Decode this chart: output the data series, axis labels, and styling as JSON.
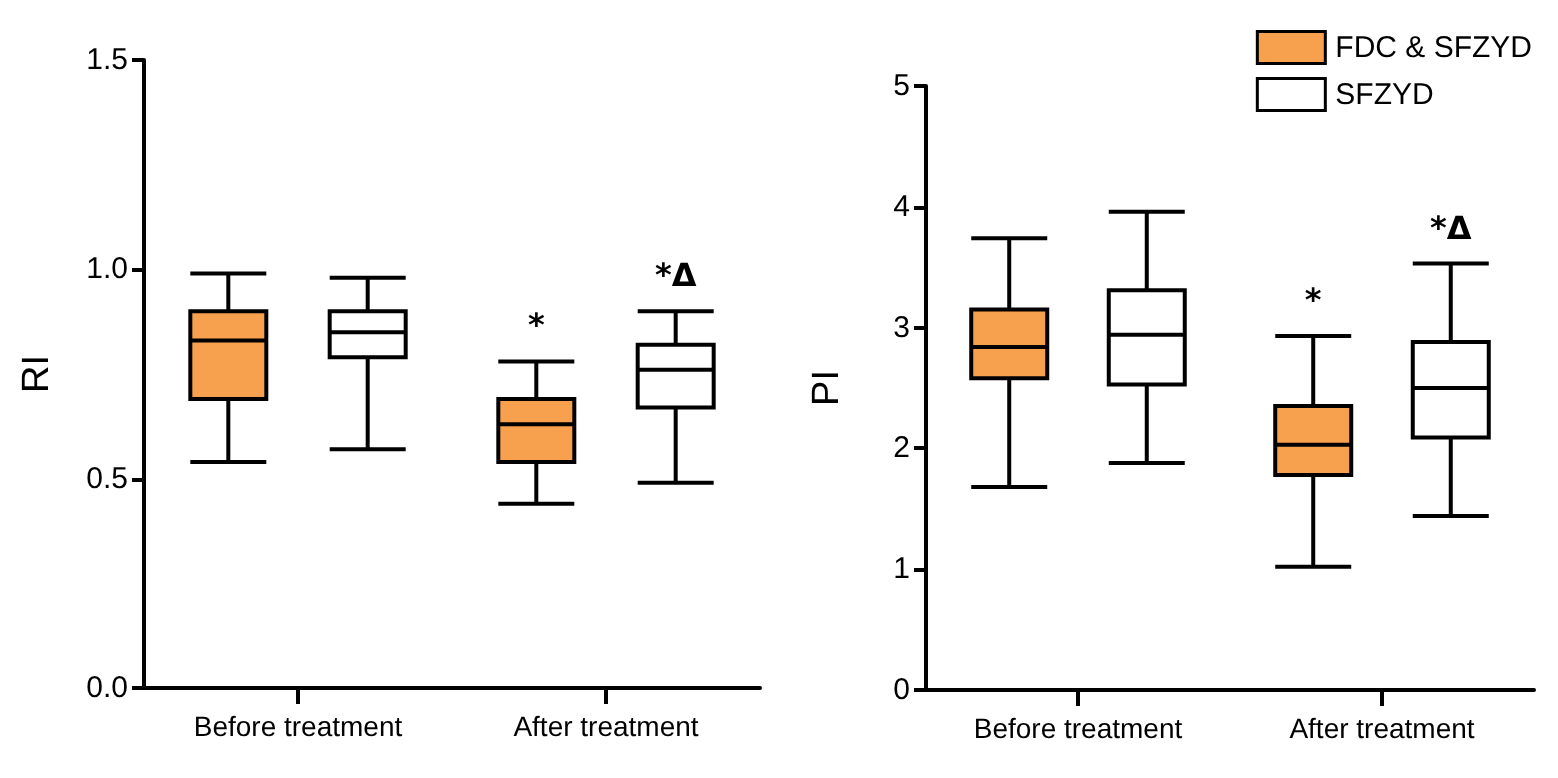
{
  "chart_data": [
    {
      "type": "box",
      "ylabel": "RI",
      "categories": [
        "Before treatment",
        "After treatment"
      ],
      "ylim": [
        0,
        1.5
      ],
      "yticks": [
        {
          "value": 0,
          "label": "0.0"
        },
        {
          "value": 0.5,
          "label": "0.5"
        },
        {
          "value": 1,
          "label": "1.0"
        },
        {
          "value": 1.5,
          "label": "1.5"
        }
      ],
      "grid": false,
      "legend": false,
      "series": [
        {
          "color": "#f7a04e",
          "boxes": [
            {
              "low": 0.54,
              "q1": 0.69,
              "median": 0.83,
              "q3": 0.9,
              "high": 0.99
            },
            {
              "low": 0.44,
              "q1": 0.54,
              "median": 0.63,
              "q3": 0.69,
              "high": 0.78
            }
          ]
        },
        {
          "color": "#ffffff",
          "boxes": [
            {
              "low": 0.57,
              "q1": 0.79,
              "median": 0.85,
              "q3": 0.9,
              "high": 0.98
            },
            {
              "low": 0.49,
              "q1": 0.67,
              "median": 0.76,
              "q3": 0.82,
              "high": 0.9
            }
          ]
        }
      ],
      "annotations": [
        "*",
        "*Δ"
      ]
    },
    {
      "type": "box",
      "ylabel": "PI",
      "categories": [
        "Before treatment",
        "After treatment"
      ],
      "ylim": [
        0,
        5
      ],
      "yticks": [
        0,
        1,
        2,
        3,
        4,
        5
      ],
      "grid": false,
      "legend": "top right",
      "series": [
        {
          "name": "FDC & SFZYD",
          "color": "#f7a04e",
          "boxes": [
            {
              "low": 1.68,
              "q1": 2.58,
              "median": 2.84,
              "q3": 3.15,
              "high": 3.74
            },
            {
              "low": 1.02,
              "q1": 1.78,
              "median": 2.03,
              "q3": 2.35,
              "high": 2.93
            }
          ]
        },
        {
          "name": "SFZYD",
          "color": "#ffffff",
          "boxes": [
            {
              "low": 1.88,
              "q1": 2.53,
              "median": 2.94,
              "q3": 3.31,
              "high": 3.96
            },
            {
              "low": 1.44,
              "q1": 2.09,
              "median": 2.5,
              "q3": 2.88,
              "high": 3.53
            }
          ]
        }
      ],
      "annotations": [
        "*",
        "*Δ"
      ]
    }
  ]
}
